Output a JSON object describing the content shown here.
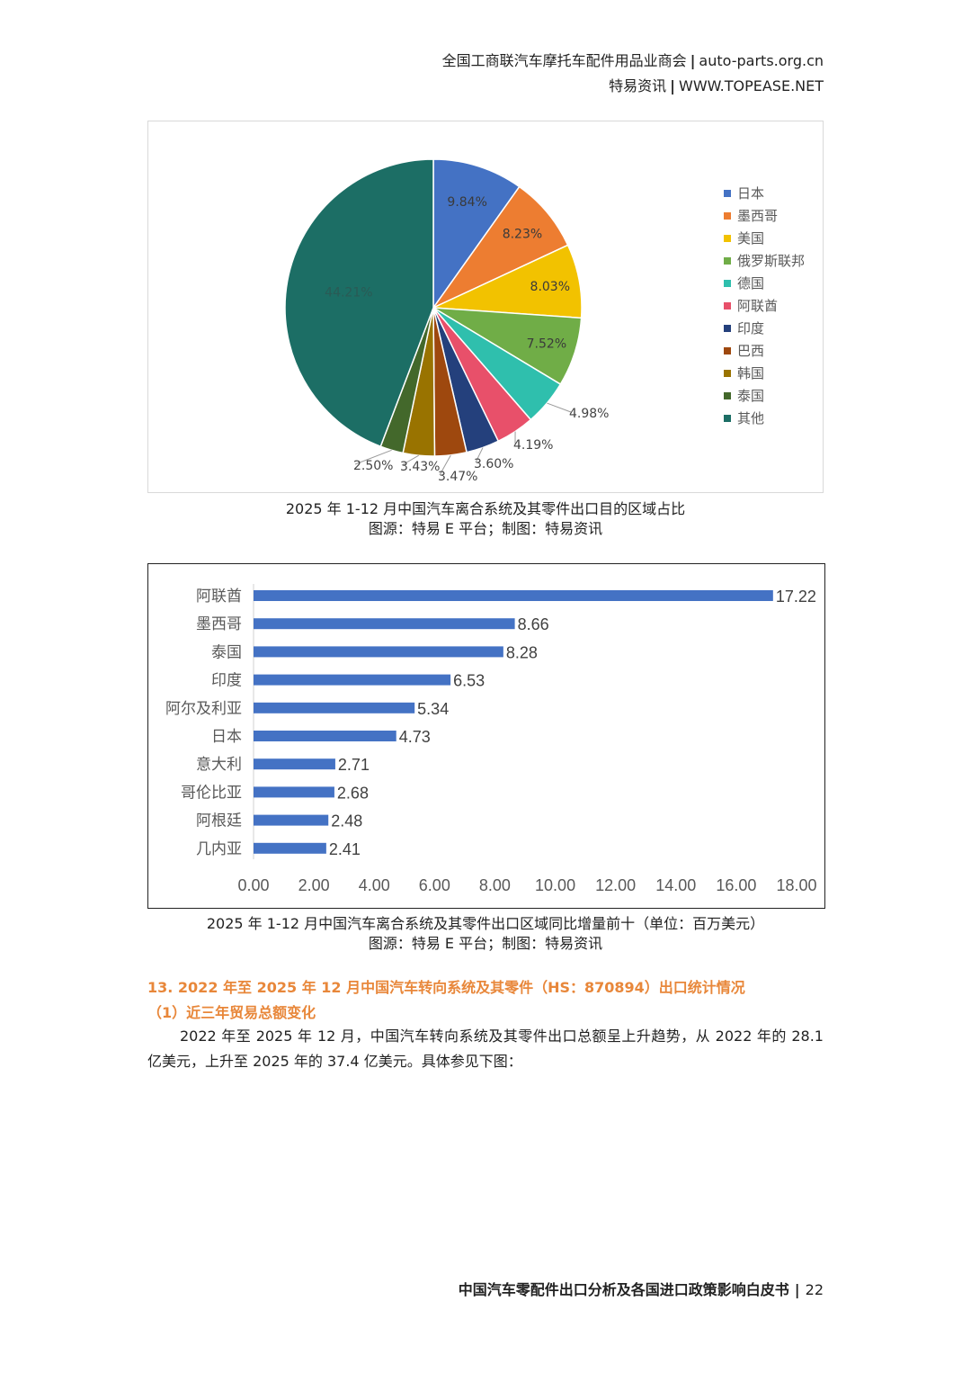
{
  "header": {
    "line1_org": "全国工商联汽车摩托车配件用品业商会",
    "line1_site": "auto-parts.org.cn",
    "line2_org": "特易资讯",
    "line2_site": "WWW.TOPEASE.NET",
    "separator": "|"
  },
  "pie_chart": {
    "caption": "2025 年 1-12 月中国汽车离合系统及其零件出口目的区域占比",
    "source": "图源：特易 E 平台；制图：特易资讯"
  },
  "bar_chart": {
    "caption": "2025 年 1-12 月中国汽车离合系统及其零件出口区域同比增量前十（单位：百万美元）",
    "source": "图源：特易 E 平台；制图：特易资讯"
  },
  "chart_data": [
    {
      "type": "pie",
      "categories": [
        "日本",
        "墨西哥",
        "美国",
        "俄罗斯联邦",
        "德国",
        "阿联酋",
        "印度",
        "巴西",
        "韩国",
        "泰国",
        "其他"
      ],
      "values": [
        9.84,
        8.23,
        8.03,
        7.52,
        4.98,
        4.19,
        3.6,
        3.47,
        3.43,
        2.5,
        44.21
      ],
      "labels": [
        "9.84%",
        "8.23%",
        "8.03%",
        "7.52%",
        "4.98%",
        "4.19%",
        "3.60%",
        "3.47%",
        "3.43%",
        "2.50%",
        "44.21%"
      ],
      "colors": [
        "#4472c4",
        "#ed7d31",
        "#f2c200",
        "#70ad47",
        "#2fbfad",
        "#e8506a",
        "#24407c",
        "#9e480e",
        "#997300",
        "#43682b",
        "#1c6e65"
      ],
      "legend_position": "right"
    },
    {
      "type": "bar",
      "orientation": "horizontal",
      "categories": [
        "阿联酋",
        "墨西哥",
        "泰国",
        "印度",
        "阿尔及利亚",
        "日本",
        "意大利",
        "哥伦比亚",
        "阿根廷",
        "几内亚"
      ],
      "values": [
        17.22,
        8.66,
        8.28,
        6.53,
        5.34,
        4.73,
        2.71,
        2.68,
        2.48,
        2.41
      ],
      "value_labels": [
        "17.22",
        "8.66",
        "8.28",
        "6.53",
        "5.34",
        "4.73",
        "2.71",
        "2.68",
        "2.48",
        "2.41"
      ],
      "xlim": [
        0,
        18
      ],
      "x_ticks": [
        "0.00",
        "2.00",
        "4.00",
        "6.00",
        "8.00",
        "10.00",
        "12.00",
        "14.00",
        "16.00",
        "18.00"
      ],
      "color": "#4472c4",
      "grid": false
    }
  ],
  "section": {
    "title": "13. 2022 年至 2025 年 12 月中国汽车转向系统及其零件（HS：870894）出口统计情况",
    "subtitle": "（1）近三年贸易总额变化",
    "paragraph": "2022 年至 2025 年 12 月，中国汽车转向系统及其零件出口总额呈上升趋势，从 2022 年的 28.1 亿美元，上升至 2025 年的 37.4 亿美元。具体参见下图："
  },
  "footer": {
    "title": "中国汽车零配件出口分析及各国进口政策影响白皮书",
    "separator": "|",
    "page": "22"
  }
}
